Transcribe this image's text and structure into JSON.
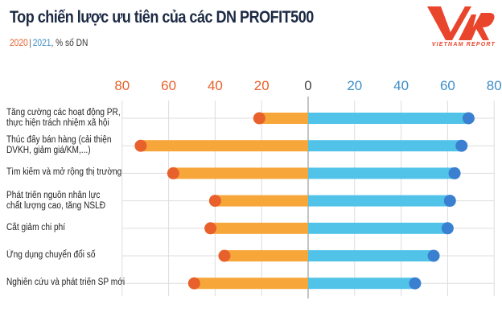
{
  "header": {
    "title": "Top chiến lược ưu tiên của các DN PROFIT500",
    "legend_2020": "2020",
    "legend_sep": "|",
    "legend_2021": "2021",
    "legend_unit": ", % số DN"
  },
  "logo": {
    "text": "VIETNAM REPORT",
    "mark": "VNR"
  },
  "colors": {
    "2020_bar": "#f7a63a",
    "2020_dot": "#e8612c",
    "2021_bar": "#52c3e8",
    "2021_dot": "#3a7fd0",
    "left_tick": "#e8612c",
    "right_tick": "#3d8ec9"
  },
  "chart_data": {
    "type": "bar",
    "orientation": "horizontal-diverging",
    "title": "Top chiến lược ưu tiên của các DN PROFIT500",
    "left_ticks": [
      "80",
      "60",
      "40",
      "20"
    ],
    "zero_tick": "0",
    "right_ticks": [
      "20",
      "40",
      "60",
      "80"
    ],
    "xlim": [
      -80,
      80
    ],
    "grid": true,
    "categories": [
      [
        "Tăng cường các hoạt động PR,",
        "thực hiện trách nhiệm xã hội"
      ],
      [
        "Thúc đẩy bán hàng (cải thiện",
        "DVKH, giảm giá/KM,...)"
      ],
      [
        "Tìm kiếm và mở rộng thị trường"
      ],
      [
        "Phát triển nguồn nhân lực",
        "chất lượng cao, tăng NSLĐ"
      ],
      [
        "Cắt giảm chi phí"
      ],
      [
        "Ứng dụng chuyển đổi số"
      ],
      [
        "Nghiên cứu và phát triển SP mới"
      ]
    ],
    "series": [
      {
        "name": "2020",
        "side": "left",
        "values": [
          21,
          72,
          58,
          40,
          42,
          36,
          49
        ]
      },
      {
        "name": "2021",
        "side": "right",
        "values": [
          69,
          66,
          63,
          61,
          60,
          54,
          46
        ]
      }
    ]
  }
}
